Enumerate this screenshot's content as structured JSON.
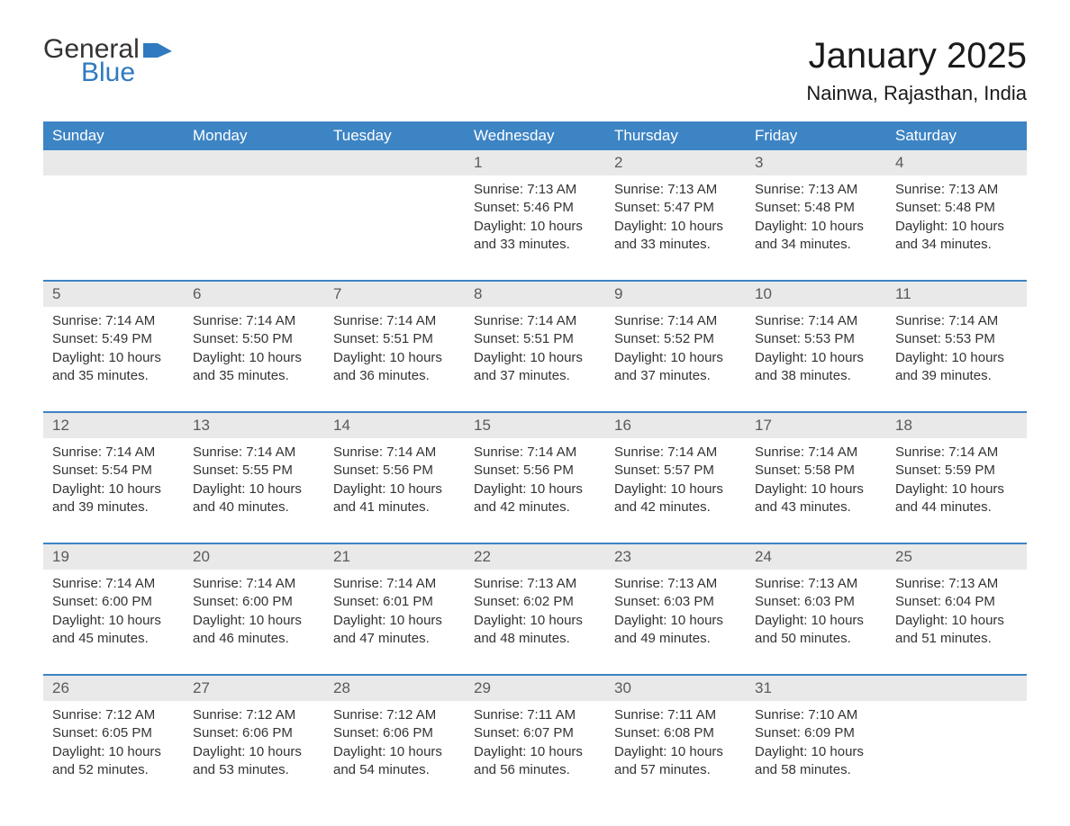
{
  "logo": {
    "text_top": "General",
    "text_bottom": "Blue",
    "shape_color": "#2f7ac0"
  },
  "title": "January 2025",
  "location": "Nainwa, Rajasthan, India",
  "colors": {
    "header_bg": "#3d84c4",
    "header_text": "#ffffff",
    "daynum_bg": "#e9e9e9",
    "rule": "#3d84c4",
    "body_text": "#333333"
  },
  "fonts": {
    "title_size_pt": 30,
    "location_size_pt": 17,
    "dow_size_pt": 13,
    "body_size_pt": 11
  },
  "days_of_week": [
    "Sunday",
    "Monday",
    "Tuesday",
    "Wednesday",
    "Thursday",
    "Friday",
    "Saturday"
  ],
  "layout": {
    "columns": 7,
    "first_day_column_index": 3,
    "weeks": 5
  },
  "labels": {
    "sunrise": "Sunrise:",
    "sunset": "Sunset:",
    "daylight": "Daylight:"
  },
  "days": [
    {
      "n": 1,
      "sunrise": "7:13 AM",
      "sunset": "5:46 PM",
      "daylight": "10 hours and 33 minutes."
    },
    {
      "n": 2,
      "sunrise": "7:13 AM",
      "sunset": "5:47 PM",
      "daylight": "10 hours and 33 minutes."
    },
    {
      "n": 3,
      "sunrise": "7:13 AM",
      "sunset": "5:48 PM",
      "daylight": "10 hours and 34 minutes."
    },
    {
      "n": 4,
      "sunrise": "7:13 AM",
      "sunset": "5:48 PM",
      "daylight": "10 hours and 34 minutes."
    },
    {
      "n": 5,
      "sunrise": "7:14 AM",
      "sunset": "5:49 PM",
      "daylight": "10 hours and 35 minutes."
    },
    {
      "n": 6,
      "sunrise": "7:14 AM",
      "sunset": "5:50 PM",
      "daylight": "10 hours and 35 minutes."
    },
    {
      "n": 7,
      "sunrise": "7:14 AM",
      "sunset": "5:51 PM",
      "daylight": "10 hours and 36 minutes."
    },
    {
      "n": 8,
      "sunrise": "7:14 AM",
      "sunset": "5:51 PM",
      "daylight": "10 hours and 37 minutes."
    },
    {
      "n": 9,
      "sunrise": "7:14 AM",
      "sunset": "5:52 PM",
      "daylight": "10 hours and 37 minutes."
    },
    {
      "n": 10,
      "sunrise": "7:14 AM",
      "sunset": "5:53 PM",
      "daylight": "10 hours and 38 minutes."
    },
    {
      "n": 11,
      "sunrise": "7:14 AM",
      "sunset": "5:53 PM",
      "daylight": "10 hours and 39 minutes."
    },
    {
      "n": 12,
      "sunrise": "7:14 AM",
      "sunset": "5:54 PM",
      "daylight": "10 hours and 39 minutes."
    },
    {
      "n": 13,
      "sunrise": "7:14 AM",
      "sunset": "5:55 PM",
      "daylight": "10 hours and 40 minutes."
    },
    {
      "n": 14,
      "sunrise": "7:14 AM",
      "sunset": "5:56 PM",
      "daylight": "10 hours and 41 minutes."
    },
    {
      "n": 15,
      "sunrise": "7:14 AM",
      "sunset": "5:56 PM",
      "daylight": "10 hours and 42 minutes."
    },
    {
      "n": 16,
      "sunrise": "7:14 AM",
      "sunset": "5:57 PM",
      "daylight": "10 hours and 42 minutes."
    },
    {
      "n": 17,
      "sunrise": "7:14 AM",
      "sunset": "5:58 PM",
      "daylight": "10 hours and 43 minutes."
    },
    {
      "n": 18,
      "sunrise": "7:14 AM",
      "sunset": "5:59 PM",
      "daylight": "10 hours and 44 minutes."
    },
    {
      "n": 19,
      "sunrise": "7:14 AM",
      "sunset": "6:00 PM",
      "daylight": "10 hours and 45 minutes."
    },
    {
      "n": 20,
      "sunrise": "7:14 AM",
      "sunset": "6:00 PM",
      "daylight": "10 hours and 46 minutes."
    },
    {
      "n": 21,
      "sunrise": "7:14 AM",
      "sunset": "6:01 PM",
      "daylight": "10 hours and 47 minutes."
    },
    {
      "n": 22,
      "sunrise": "7:13 AM",
      "sunset": "6:02 PM",
      "daylight": "10 hours and 48 minutes."
    },
    {
      "n": 23,
      "sunrise": "7:13 AM",
      "sunset": "6:03 PM",
      "daylight": "10 hours and 49 minutes."
    },
    {
      "n": 24,
      "sunrise": "7:13 AM",
      "sunset": "6:03 PM",
      "daylight": "10 hours and 50 minutes."
    },
    {
      "n": 25,
      "sunrise": "7:13 AM",
      "sunset": "6:04 PM",
      "daylight": "10 hours and 51 minutes."
    },
    {
      "n": 26,
      "sunrise": "7:12 AM",
      "sunset": "6:05 PM",
      "daylight": "10 hours and 52 minutes."
    },
    {
      "n": 27,
      "sunrise": "7:12 AM",
      "sunset": "6:06 PM",
      "daylight": "10 hours and 53 minutes."
    },
    {
      "n": 28,
      "sunrise": "7:12 AM",
      "sunset": "6:06 PM",
      "daylight": "10 hours and 54 minutes."
    },
    {
      "n": 29,
      "sunrise": "7:11 AM",
      "sunset": "6:07 PM",
      "daylight": "10 hours and 56 minutes."
    },
    {
      "n": 30,
      "sunrise": "7:11 AM",
      "sunset": "6:08 PM",
      "daylight": "10 hours and 57 minutes."
    },
    {
      "n": 31,
      "sunrise": "7:10 AM",
      "sunset": "6:09 PM",
      "daylight": "10 hours and 58 minutes."
    }
  ]
}
